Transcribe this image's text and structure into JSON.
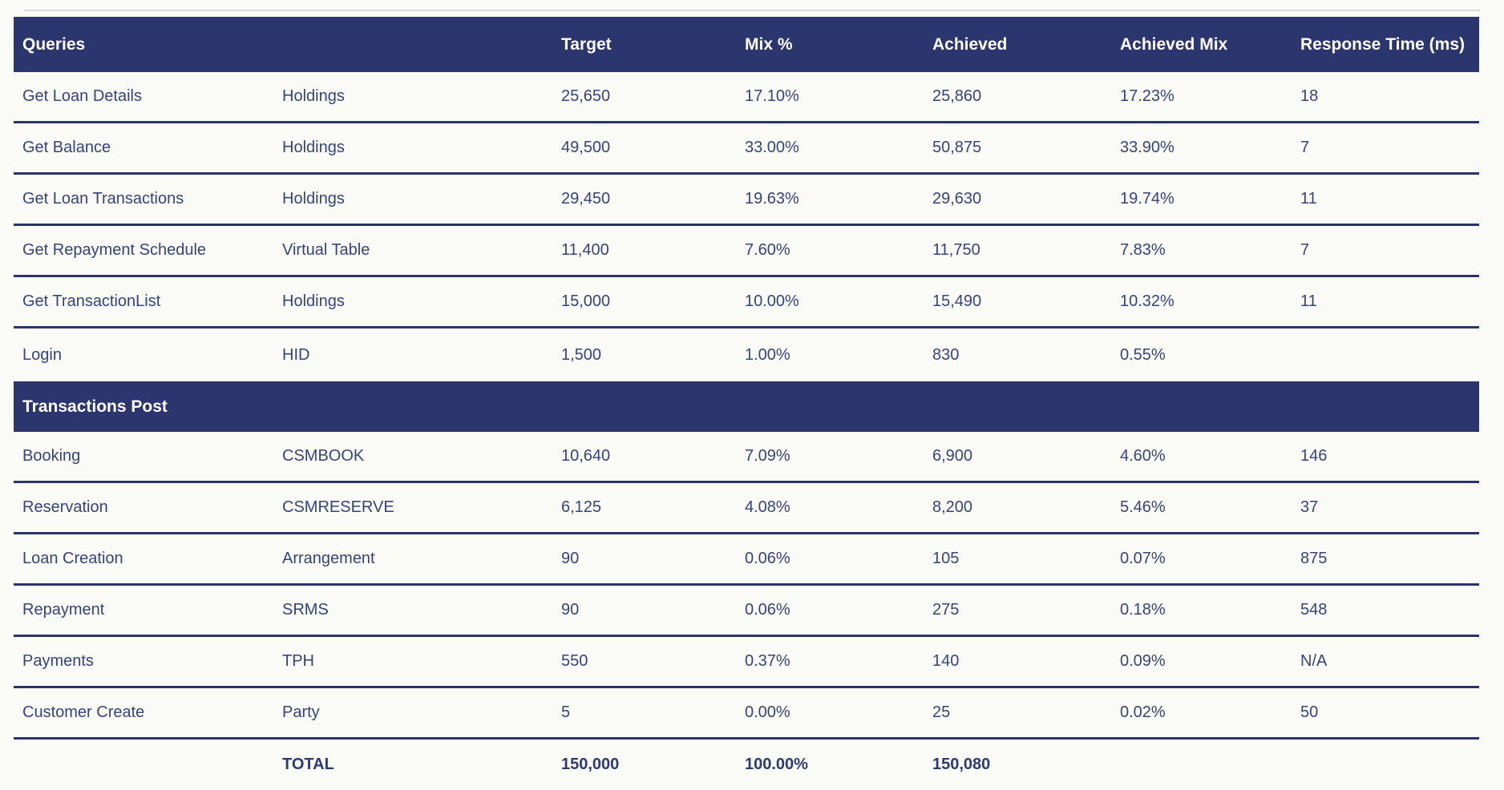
{
  "table": {
    "header": {
      "queries": "Queries",
      "target": "Target",
      "mix": "Mix %",
      "achieved": "Achieved",
      "achieved_mix": "Achieved Mix",
      "response_time": "Response Time (ms)"
    },
    "queries_rows": [
      {
        "name": "Get Loan Details",
        "module": "Holdings",
        "target": "25,650",
        "mix": "17.10%",
        "achieved": "25,860",
        "achieved_mix": "17.23%",
        "response_time": "18"
      },
      {
        "name": "Get Balance",
        "module": "Holdings",
        "target": "49,500",
        "mix": "33.00%",
        "achieved": "50,875",
        "achieved_mix": "33.90%",
        "response_time": "7"
      },
      {
        "name": "Get Loan Transactions",
        "module": "Holdings",
        "target": "29,450",
        "mix": "19.63%",
        "achieved": "29,630",
        "achieved_mix": "19.74%",
        "response_time": "11"
      },
      {
        "name": "Get Repayment Schedule",
        "module": "Virtual Table",
        "target": "11,400",
        "mix": "7.60%",
        "achieved": "11,750",
        "achieved_mix": "7.83%",
        "response_time": "7"
      },
      {
        "name": "Get TransactionList",
        "module": "Holdings",
        "target": "15,000",
        "mix": "10.00%",
        "achieved": "15,490",
        "achieved_mix": "10.32%",
        "response_time": "11"
      },
      {
        "name": "Login",
        "module": "HID",
        "target": "1,500",
        "mix": "1.00%",
        "achieved": "830",
        "achieved_mix": "0.55%",
        "response_time": ""
      }
    ],
    "section2": {
      "label": "Transactions Post"
    },
    "transactions_rows": [
      {
        "name": "Booking",
        "module": "CSMBOOK",
        "target": "10,640",
        "mix": "7.09%",
        "achieved": "6,900",
        "achieved_mix": "4.60%",
        "response_time": "146"
      },
      {
        "name": "Reservation",
        "module": "CSMRESERVE",
        "target": "6,125",
        "mix": "4.08%",
        "achieved": "8,200",
        "achieved_mix": "5.46%",
        "response_time": "37"
      },
      {
        "name": "Loan Creation",
        "module": "Arrangement",
        "target": "90",
        "mix": "0.06%",
        "achieved": "105",
        "achieved_mix": "0.07%",
        "response_time": "875"
      },
      {
        "name": "Repayment",
        "module": "SRMS",
        "target": "90",
        "mix": "0.06%",
        "achieved": "275",
        "achieved_mix": "0.18%",
        "response_time": "548"
      },
      {
        "name": "Payments",
        "module": "TPH",
        "target": "550",
        "mix": "0.37%",
        "achieved": "140",
        "achieved_mix": "0.09%",
        "response_time": "N/A"
      },
      {
        "name": "Customer Create",
        "module": "Party",
        "target": "5",
        "mix": "0.00%",
        "achieved": "25",
        "achieved_mix": "0.02%",
        "response_time": "50"
      }
    ],
    "total": {
      "label": "TOTAL",
      "target": "150,000",
      "mix": "100.00%",
      "achieved": "150,080"
    },
    "colors": {
      "header_bg": "#2b356e",
      "divider": "#2a3468",
      "body_text": "#37447c",
      "header_text": "#ffffff"
    }
  }
}
